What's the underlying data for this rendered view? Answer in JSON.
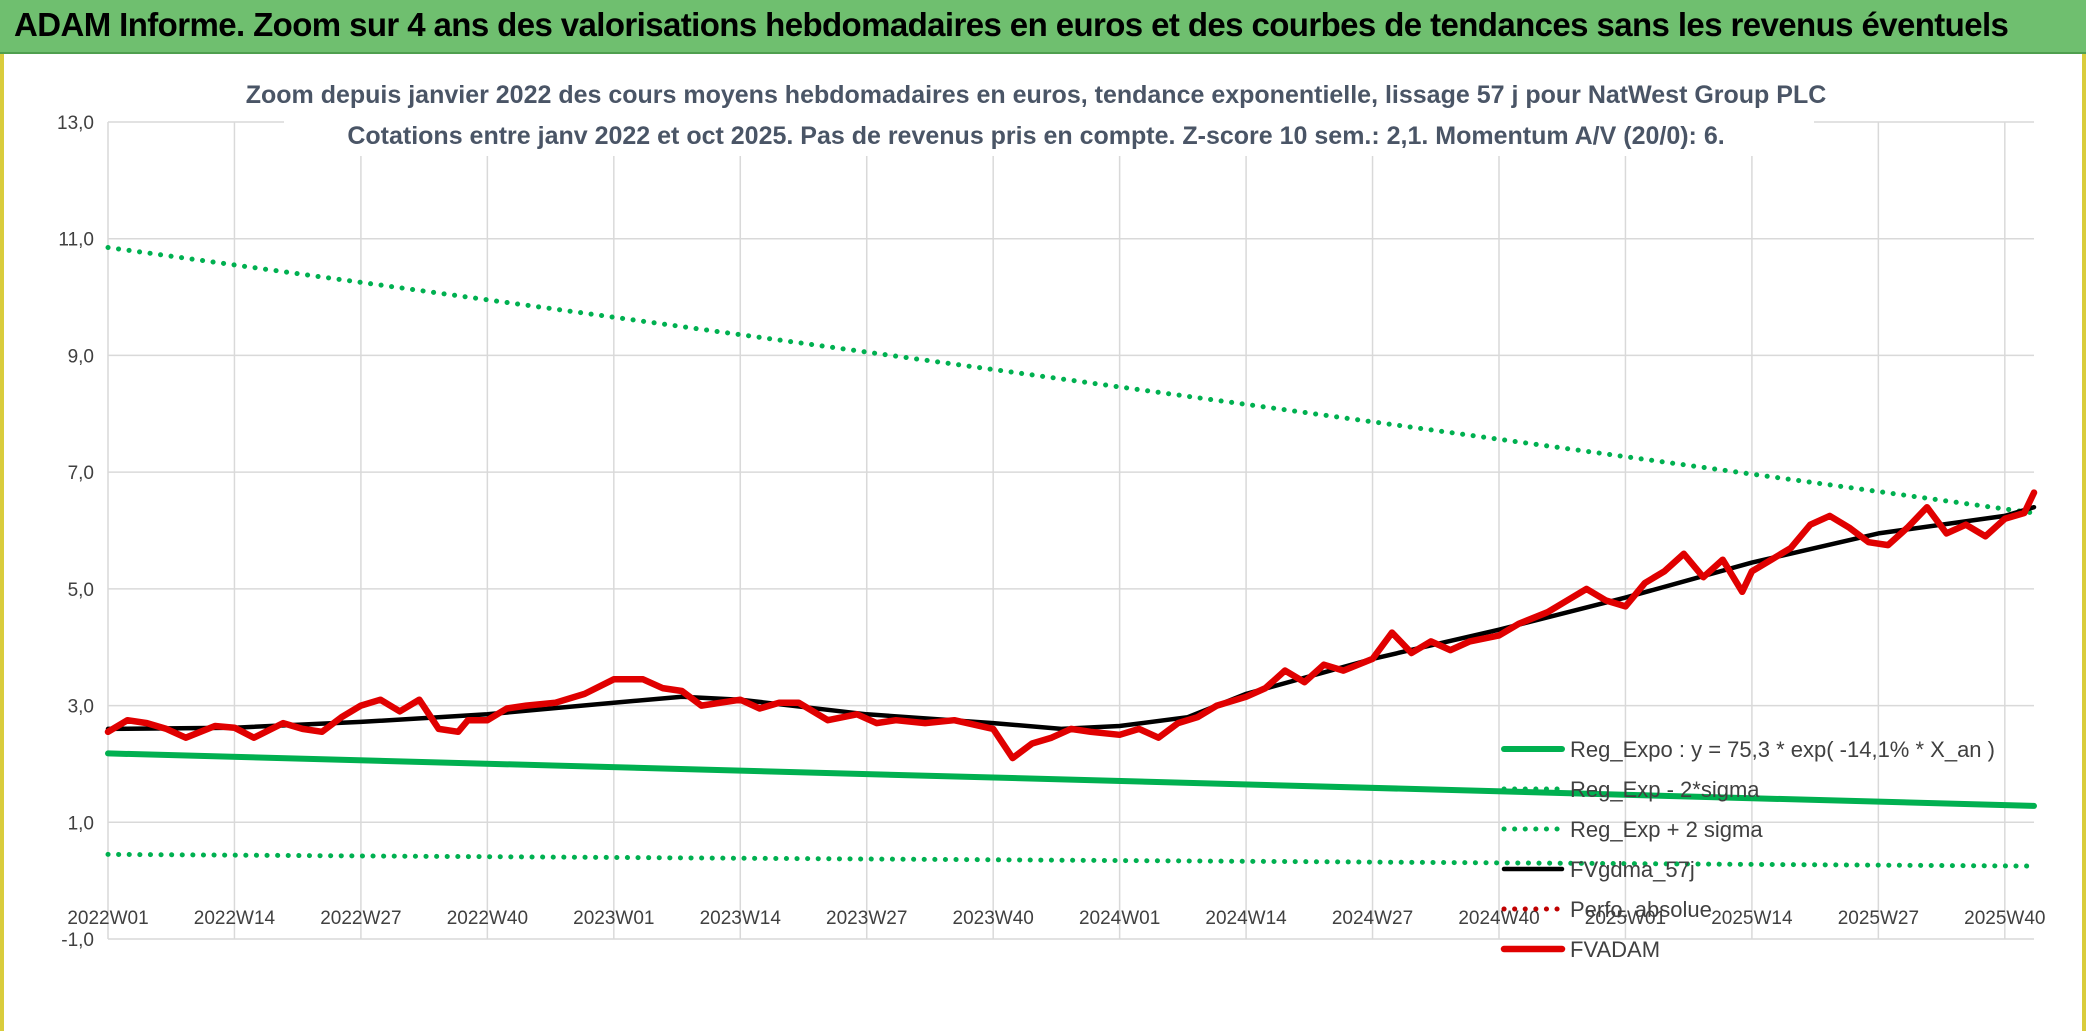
{
  "banner": {
    "title": "ADAM Informe. Zoom sur 4 ans des valorisations hebdomadaires en euros et des courbes de tendances sans les revenus éventuels"
  },
  "colors": {
    "banner_bg": "#6fbf6f",
    "reg_expo": "#00b050",
    "fvgdma": "#000000",
    "fvadam": "#e00000",
    "perfo": "#c00000",
    "grid": "#d9d9d9"
  },
  "chart_data": {
    "type": "line",
    "title": "Zoom depuis janvier 2022 des cours moyens hebdomadaires en euros, tendance exponentielle, lissage 57 j pour NatWest Group PLC",
    "subtitle": "Cotations entre janv 2022 et oct 2025. Pas de revenus pris en compte. Z-score 10 sem.: 2,1. Momentum A/V (20/0): 6.",
    "xlabel": "",
    "ylabel": "",
    "ylim": [
      -1,
      13
    ],
    "yticks": [
      "-1,0",
      "1,0",
      "3,0",
      "5,0",
      "7,0",
      "9,0",
      "11,0",
      "13,0"
    ],
    "y_tick_values": [
      -1,
      1,
      3,
      5,
      7,
      9,
      11,
      13
    ],
    "x_tick_labels": [
      "2022W01",
      "2022W14",
      "2022W27",
      "2022W40",
      "2023W01",
      "2023W14",
      "2023W27",
      "2023W40",
      "2024W01",
      "2024W14",
      "2024W27",
      "2024W40",
      "2025W01",
      "2025W14",
      "2025W27",
      "2025W40"
    ],
    "grid": true,
    "legend_position": "right",
    "series": [
      {
        "name": "Reg_Expo : y = 75,3 * exp( -14,1% *  X_an )",
        "style": "solid",
        "color": "#00b050",
        "x": [
          "2022W01",
          "2025W43"
        ],
        "values": [
          2.18,
          1.28
        ]
      },
      {
        "name": "Reg_Exp - 2*sigma",
        "style": "dotted",
        "color": "#00b050",
        "x": [
          "2022W01",
          "2025W43"
        ],
        "values": [
          0.45,
          0.25
        ]
      },
      {
        "name": "Reg_Exp + 2 sigma",
        "style": "dotted",
        "color": "#00b050",
        "x": [
          "2022W01",
          "2025W43"
        ],
        "values": [
          10.85,
          6.3
        ]
      },
      {
        "name": "FVgdma_57j",
        "style": "solid",
        "color": "#000000",
        "x": [
          "2022W01",
          "2022W14",
          "2022W27",
          "2022W40",
          "2023W01",
          "2023W08",
          "2023W14",
          "2023W27",
          "2023W40",
          "2023W47",
          "2024W01",
          "2024W08",
          "2024W14",
          "2024W27",
          "2024W40",
          "2025W01",
          "2025W14",
          "2025W27",
          "2025W40",
          "2025W43"
        ],
        "values": [
          2.6,
          2.62,
          2.72,
          2.85,
          3.05,
          3.15,
          3.1,
          2.85,
          2.7,
          2.6,
          2.65,
          2.8,
          3.2,
          3.8,
          4.3,
          4.85,
          5.45,
          5.95,
          6.25,
          6.4
        ]
      },
      {
        "name": "Perfo. absolue",
        "style": "dotted",
        "color": "#c00000",
        "x": [],
        "values": []
      },
      {
        "name": "FVADAM",
        "style": "solid",
        "color": "#e00000",
        "x": [
          "2022W01",
          "2022W03",
          "2022W05",
          "2022W07",
          "2022W09",
          "2022W12",
          "2022W14",
          "2022W16",
          "2022W19",
          "2022W21",
          "2022W23",
          "2022W25",
          "2022W27",
          "2022W29",
          "2022W31",
          "2022W33",
          "2022W35",
          "2022W37",
          "2022W38",
          "2022W40",
          "2022W42",
          "2022W44",
          "2022W47",
          "2022W50",
          "2023W01",
          "2023W04",
          "2023W06",
          "2023W08",
          "2023W10",
          "2023W12",
          "2023W14",
          "2023W16",
          "2023W18",
          "2023W20",
          "2023W23",
          "2023W26",
          "2023W28",
          "2023W30",
          "2023W33",
          "2023W36",
          "2023W40",
          "2023W42",
          "2023W44",
          "2023W46",
          "2023W48",
          "2023W50",
          "2024W01",
          "2024W03",
          "2024W05",
          "2024W07",
          "2024W09",
          "2024W11",
          "2024W14",
          "2024W16",
          "2024W18",
          "2024W20",
          "2024W22",
          "2024W24",
          "2024W27",
          "2024W29",
          "2024W31",
          "2024W33",
          "2024W35",
          "2024W37",
          "2024W40",
          "2024W42",
          "2024W45",
          "2024W47",
          "2024W49",
          "2024W51",
          "2025W01",
          "2025W03",
          "2025W05",
          "2025W07",
          "2025W09",
          "2025W11",
          "2025W13",
          "2025W14",
          "2025W16",
          "2025W18",
          "2025W20",
          "2025W22",
          "2025W24",
          "2025W26",
          "2025W28",
          "2025W30",
          "2025W32",
          "2025W34",
          "2025W36",
          "2025W38",
          "2025W40",
          "2025W42",
          "2025W43"
        ],
        "values": [
          2.55,
          2.75,
          2.7,
          2.6,
          2.45,
          2.65,
          2.62,
          2.45,
          2.7,
          2.6,
          2.55,
          2.8,
          3.0,
          3.1,
          2.9,
          3.1,
          2.6,
          2.55,
          2.75,
          2.75,
          2.95,
          3.0,
          3.05,
          3.2,
          3.45,
          3.45,
          3.3,
          3.25,
          3.0,
          3.05,
          3.1,
          2.95,
          3.05,
          3.05,
          2.75,
          2.85,
          2.7,
          2.75,
          2.7,
          2.75,
          2.6,
          2.1,
          2.35,
          2.45,
          2.6,
          2.55,
          2.5,
          2.6,
          2.45,
          2.7,
          2.8,
          3.0,
          3.15,
          3.3,
          3.6,
          3.4,
          3.7,
          3.6,
          3.8,
          4.25,
          3.9,
          4.1,
          3.95,
          4.1,
          4.2,
          4.4,
          4.6,
          4.8,
          5.0,
          4.8,
          4.7,
          5.1,
          5.3,
          5.6,
          5.2,
          5.5,
          4.95,
          5.3,
          5.5,
          5.7,
          6.1,
          6.25,
          6.05,
          5.8,
          5.75,
          6.05,
          6.4,
          5.95,
          6.1,
          5.9,
          6.2,
          6.3,
          6.65
        ]
      }
    ]
  }
}
